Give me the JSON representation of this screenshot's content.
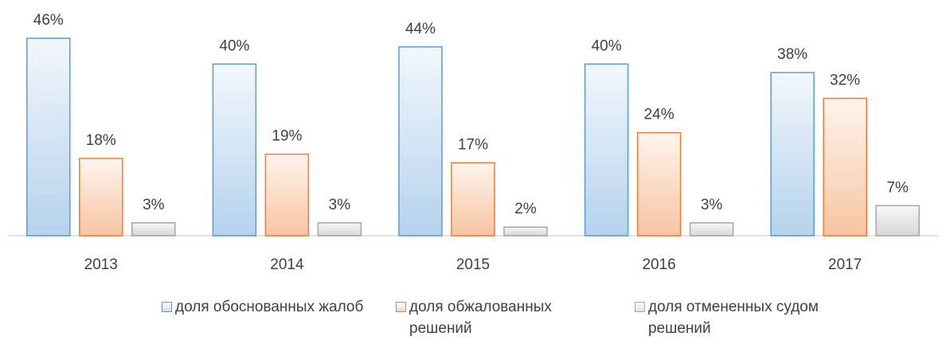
{
  "chart_data": {
    "type": "bar",
    "categories": [
      "2013",
      "2014",
      "2015",
      "2016",
      "2017"
    ],
    "series": [
      {
        "name": "доля обоснованных жалоб",
        "color": "#5b9bd5",
        "values": [
          46,
          40,
          44,
          40,
          38
        ],
        "value_labels": [
          "46%",
          "40%",
          "44%",
          "40%",
          "38%"
        ]
      },
      {
        "name": "доля обжалованных решений",
        "color": "#ed7d31",
        "values": [
          18,
          19,
          17,
          24,
          32
        ],
        "value_labels": [
          "18%",
          "19%",
          "17%",
          "24%",
          "32%"
        ]
      },
      {
        "name": "доля отмененных судом решений",
        "color": "#a5a5a5",
        "values": [
          3,
          3,
          2,
          3,
          7
        ],
        "value_labels": [
          "3%",
          "3%",
          "2%",
          "3%",
          "7%"
        ]
      }
    ]
  }
}
